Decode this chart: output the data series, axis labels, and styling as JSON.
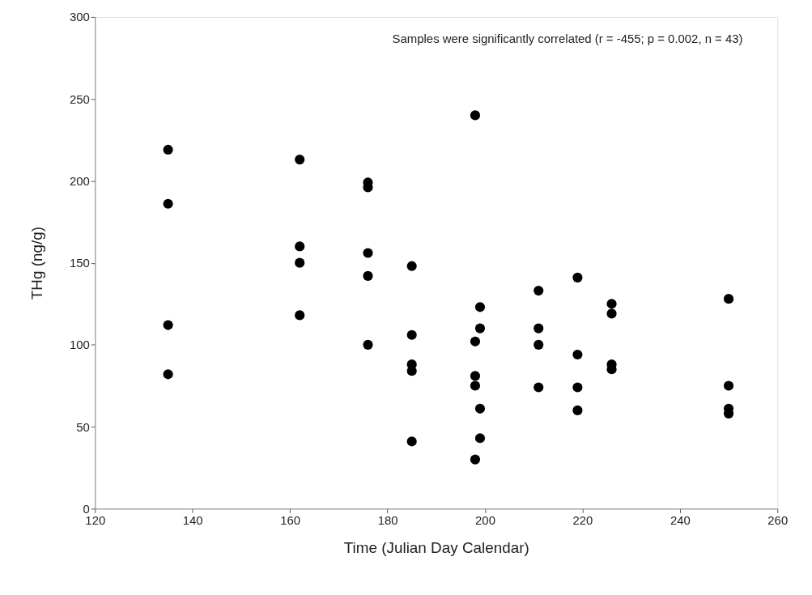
{
  "chart_data": {
    "type": "scatter",
    "xlabel": "Time (Julian Day Calendar)",
    "ylabel": "THg (ng/g)",
    "annotations": [
      "Samples were significantly correlated (r = -455; p = 0.002, n = 43)"
    ],
    "x": [
      135,
      135,
      135,
      135,
      162,
      162,
      162,
      162,
      176,
      176,
      176,
      176,
      176,
      185,
      185,
      185,
      185,
      185,
      198,
      198,
      198,
      198,
      198,
      199,
      199,
      199,
      199,
      211,
      211,
      211,
      211,
      219,
      219,
      219,
      219,
      226,
      226,
      226,
      226,
      250,
      250,
      250,
      250
    ],
    "series": [
      {
        "color": "#000000",
        "values": [
          219,
          186,
          112,
          82,
          213,
          160,
          150,
          118,
          199,
          196,
          156,
          142,
          100,
          148,
          106,
          88,
          84,
          41,
          240,
          102,
          81,
          75,
          30,
          123,
          110,
          61,
          43,
          133,
          110,
          100,
          74,
          141,
          94,
          74,
          60,
          125,
          119,
          88,
          85,
          128,
          75,
          61,
          58
        ]
      }
    ],
    "xlim": [
      120,
      260
    ],
    "xticks": [
      120,
      140,
      160,
      180,
      200,
      220,
      240,
      260
    ],
    "ylim": [
      0,
      300
    ],
    "yticks": [
      0,
      50,
      100,
      150,
      200,
      250,
      300
    ],
    "marker": "circle",
    "grid": false,
    "legend": false
  }
}
